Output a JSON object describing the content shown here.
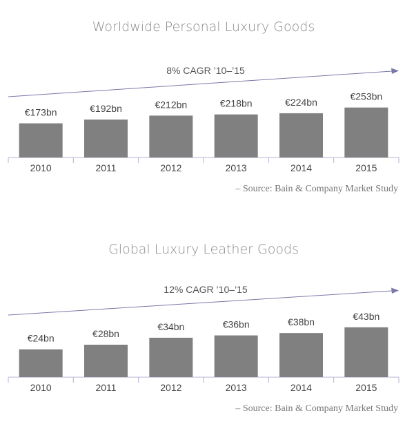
{
  "chart_data": [
    {
      "type": "bar",
      "title": "Worldwide Personal Luxury Goods",
      "categories": [
        "2010",
        "2011",
        "2012",
        "2013",
        "2014",
        "2015"
      ],
      "values": [
        173,
        192,
        212,
        218,
        224,
        253
      ],
      "value_labels": [
        "€173bn",
        "€192bn",
        "€212bn",
        "€218bn",
        "€224bn",
        "€253bn"
      ],
      "annotation": "8% CAGR ’10–’15",
      "source": "– Source: Bain & Company Market Study",
      "bar_color": "#808080",
      "axis_color": "#b7b2d4",
      "arrow_color": "#7a78a8"
    },
    {
      "type": "bar",
      "title": "Global Luxury Leather Goods",
      "categories": [
        "2010",
        "2011",
        "2012",
        "2013",
        "2014",
        "2015"
      ],
      "values": [
        24,
        28,
        34,
        36,
        38,
        43
      ],
      "value_labels": [
        "€24bn",
        "€28bn",
        "€34bn",
        "€36bn",
        "€38bn",
        "€43bn"
      ],
      "annotation": "12% CAGR ’10–’15",
      "source": "– Source: Bain & Company Market Study",
      "bar_color": "#808080",
      "axis_color": "#b7b2d4",
      "arrow_color": "#7a78a8"
    }
  ]
}
